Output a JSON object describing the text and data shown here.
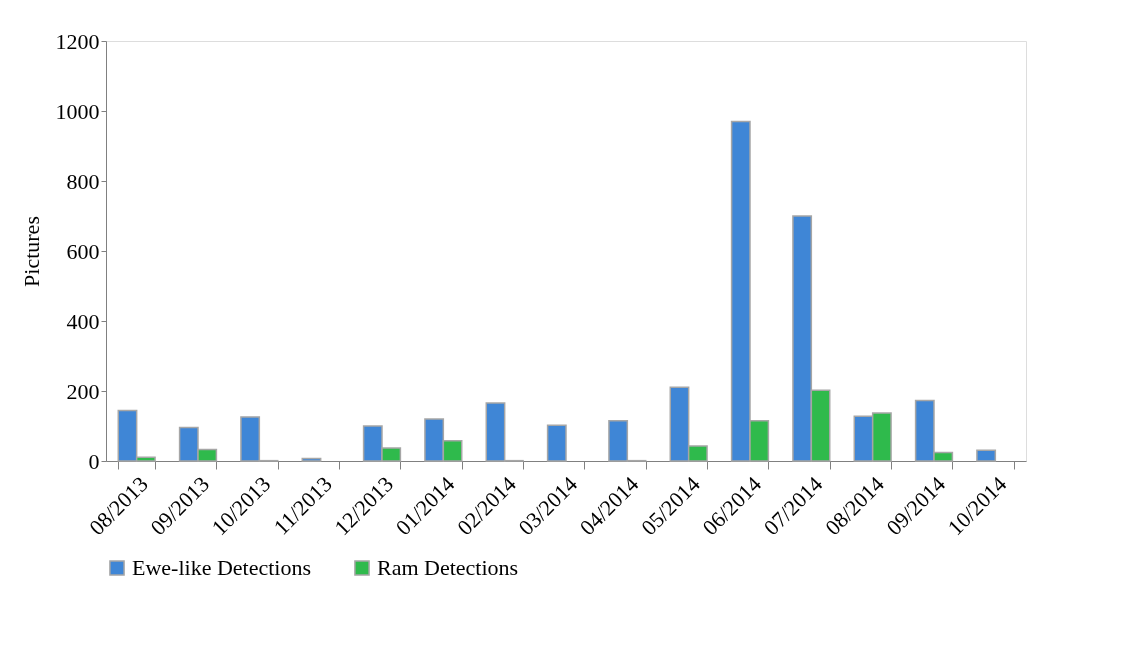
{
  "chart_data": {
    "type": "bar",
    "ylabel": "Pictures",
    "categories": [
      "08/2013",
      "09/2013",
      "10/2013",
      "11/2013",
      "12/2013",
      "01/2014",
      "02/2014",
      "03/2014",
      "04/2014",
      "05/2014",
      "06/2014",
      "07/2014",
      "08/2014",
      "09/2014",
      "10/2014"
    ],
    "series": [
      {
        "name": "Ewe-like Detections",
        "color": "#3f86d6",
        "values": [
          144,
          96,
          126,
          7,
          100,
          120,
          166,
          102,
          115,
          211,
          970,
          700,
          128,
          173,
          31
        ]
      },
      {
        "name": "Ram Detections",
        "color": "#2fba4c",
        "values": [
          11,
          33,
          1,
          0,
          37,
          58,
          1,
          0,
          1,
          43,
          115,
          202,
          137,
          24,
          0
        ]
      }
    ],
    "ylim": [
      0,
      1200
    ],
    "yticks": [
      0,
      200,
      400,
      600,
      800,
      1000,
      1200
    ],
    "grid": false,
    "legend": "bottom"
  }
}
